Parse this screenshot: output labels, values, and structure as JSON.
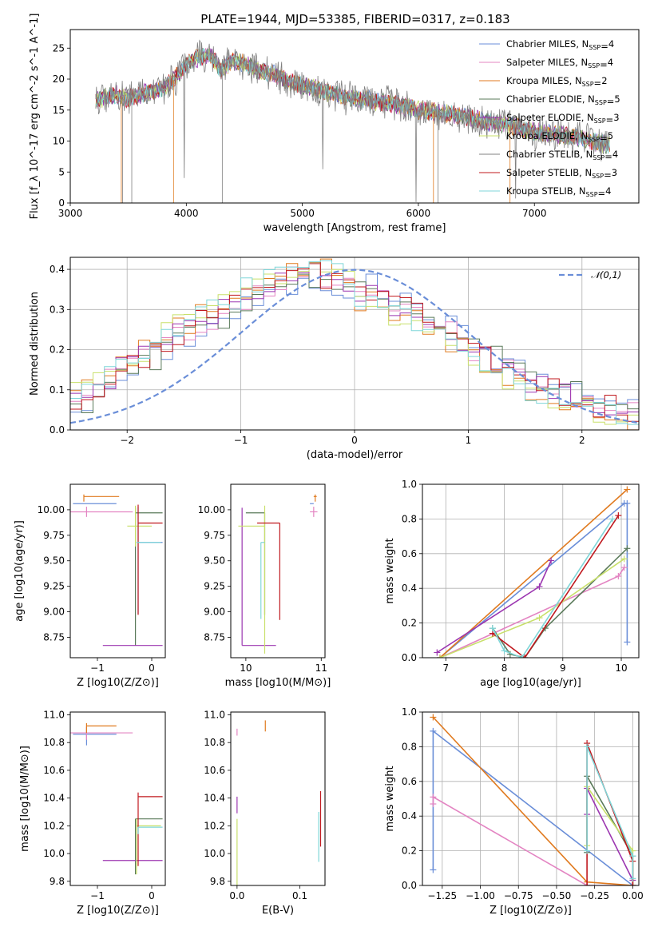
{
  "figure": {
    "title": "PLATE=1944, MJD=53385, FIBERID=0317, z=0.183"
  },
  "models": [
    {
      "name": "Chabrier MILES",
      "nssp": "4",
      "color": "#6a8ed8"
    },
    {
      "name": "Salpeter MILES",
      "nssp": "4",
      "color": "#e384c2"
    },
    {
      "name": "Kroupa MILES",
      "nssp": "2",
      "color": "#e07a1f"
    },
    {
      "name": "Chabrier ELODIE",
      "nssp": "5",
      "color": "#5a7a5a"
    },
    {
      "name": "Salpeter ELODIE",
      "nssp": "3",
      "color": "#9b35b0"
    },
    {
      "name": "Kroupa ELODIE",
      "nssp": "5",
      "color": "#c8e06a"
    },
    {
      "name": "Chabrier STELIB",
      "nssp": "4",
      "color": "#808080"
    },
    {
      "name": "Salpeter STELIB",
      "nssp": "3",
      "color": "#c0181e"
    },
    {
      "name": "Kroupa STELIB",
      "nssp": "4",
      "color": "#7fd6d8"
    }
  ],
  "chart_data": [
    {
      "id": "spectrum",
      "type": "line",
      "xlabel": "wavelength [Angstrom, rest frame]",
      "ylabel": "Flux [f_λ 10^-17 erg cm^-2 s^-1 A^-1]",
      "xlim": [
        3000,
        7900
      ],
      "ylim": [
        0,
        28
      ],
      "xticks": [
        3000,
        4000,
        5000,
        6000,
        7000
      ],
      "yticks": [
        0,
        5,
        10,
        15,
        20,
        25
      ],
      "grid": false,
      "legend": "top-right",
      "continuum": {
        "x": [
          3220,
          3300,
          3400,
          3500,
          3600,
          3700,
          3800,
          3900,
          4000,
          4100,
          4200,
          4300,
          4400,
          4500,
          4600,
          4700,
          4800,
          4900,
          5000,
          5200,
          5400,
          5600,
          5800,
          6000,
          6200,
          6400,
          6600,
          6800,
          7000,
          7200,
          7400,
          7600
        ],
        "y": [
          16.5,
          17.0,
          17.5,
          16.8,
          17.5,
          18.0,
          18.5,
          20.0,
          22.5,
          23.5,
          24.0,
          21.5,
          23.0,
          22.5,
          21.5,
          21.0,
          20.5,
          19.5,
          19.0,
          18.0,
          17.0,
          16.5,
          16.0,
          15.0,
          14.5,
          14.0,
          13.0,
          12.5,
          11.5,
          11.0,
          10.5,
          9.5
        ]
      }
    },
    {
      "id": "residuals",
      "type": "line",
      "xlabel": "(data-model)/error",
      "ylabel": "Normed distribution",
      "xlim": [
        -2.5,
        2.5
      ],
      "ylim": [
        0,
        0.43
      ],
      "xticks": [
        -2,
        -1,
        0,
        1,
        2
      ],
      "yticks": [
        0.0,
        0.1,
        0.2,
        0.3,
        0.4
      ],
      "grid": true,
      "legend": "top-right",
      "reference": {
        "name": "𝒩(0,1)",
        "mean": 0,
        "sigma": 1
      },
      "histogram": {
        "bin_start": -2.5,
        "bin_width": 0.1,
        "values": [
          0.08,
          0.09,
          0.11,
          0.13,
          0.15,
          0.16,
          0.18,
          0.2,
          0.22,
          0.24,
          0.25,
          0.27,
          0.28,
          0.3,
          0.31,
          0.33,
          0.34,
          0.36,
          0.37,
          0.38,
          0.38,
          0.39,
          0.38,
          0.38,
          0.37,
          0.33,
          0.34,
          0.33,
          0.31,
          0.3,
          0.29,
          0.28,
          0.26,
          0.24,
          0.22,
          0.2,
          0.18,
          0.16,
          0.15,
          0.13,
          0.12,
          0.11,
          0.1,
          0.09,
          0.08,
          0.07,
          0.06,
          0.06,
          0.05,
          0.05
        ]
      }
    },
    {
      "id": "age-vs-Z",
      "type": "scatter",
      "xlabel": "Z [log10(Z/Z⊙)]",
      "ylabel": "age [log10(age/yr)]",
      "xlim": [
        -1.5,
        0.25
      ],
      "ylim": [
        8.55,
        10.25
      ],
      "xticks": [
        -1,
        0
      ],
      "yticks": [
        8.75,
        9.0,
        9.25,
        9.5,
        9.75,
        10.0
      ],
      "grid": false,
      "points": [
        {
          "model": 0,
          "x": -0.25,
          "y": 9.68,
          "xerr": [
            0.0,
            0.45
          ],
          "yerr": [
            0.7,
            0.35
          ]
        },
        {
          "model": 0,
          "x": -1.2,
          "y": 10.06,
          "xerr": [
            0.25,
            0.55
          ],
          "yerr": [
            0.0,
            0.0
          ]
        },
        {
          "model": 1,
          "x": -1.2,
          "y": 9.98,
          "xerr": [
            0.3,
            0.85
          ],
          "yerr": [
            0.05,
            0.05
          ]
        },
        {
          "model": 2,
          "x": -1.25,
          "y": 10.13,
          "xerr": [
            0.0,
            0.65
          ],
          "yerr": [
            0.05,
            0.02
          ]
        },
        {
          "model": 3,
          "x": -0.3,
          "y": 9.97,
          "xerr": [
            0.0,
            0.5
          ],
          "yerr": [
            1.3,
            0.05
          ]
        },
        {
          "model": 4,
          "x": -0.35,
          "y": 8.67,
          "xerr": [
            0.55,
            0.55
          ],
          "yerr": [
            0.0,
            0.0
          ]
        },
        {
          "model": 5,
          "x": -0.3,
          "y": 9.84,
          "xerr": [
            0.15,
            0.3
          ],
          "yerr": [
            0.2,
            0.2
          ]
        },
        {
          "model": 7,
          "x": -0.25,
          "y": 9.87,
          "xerr": [
            0.0,
            0.45
          ],
          "yerr": [
            0.9,
            0.18
          ]
        },
        {
          "model": 8,
          "x": -0.28,
          "y": 9.68,
          "xerr": [
            0.0,
            0.45
          ],
          "yerr": [
            0.0,
            0.0
          ]
        }
      ]
    },
    {
      "id": "age-vs-mass",
      "type": "scatter",
      "xlabel": "mass [log10(M/M⊙)]",
      "ylabel": "",
      "xlim": [
        9.8,
        11.05
      ],
      "ylim": [
        8.55,
        10.25
      ],
      "xticks": [
        10,
        11
      ],
      "yticks": [
        8.75,
        9.0,
        9.25,
        9.5,
        9.75,
        10.0
      ],
      "grid": false,
      "points": [
        {
          "model": 0,
          "x": 10.85,
          "y": 10.06,
          "xerr": [
            0.0,
            0.05
          ],
          "yerr": [
            0.0,
            0.0
          ]
        },
        {
          "model": 1,
          "x": 10.9,
          "y": 9.98,
          "xerr": [
            0.05,
            0.05
          ],
          "yerr": [
            0.05,
            0.05
          ]
        },
        {
          "model": 2,
          "x": 10.92,
          "y": 10.13,
          "xerr": [
            0.02,
            0.02
          ],
          "yerr": [
            0.05,
            0.02
          ]
        },
        {
          "model": 3,
          "x": 10.25,
          "y": 9.97,
          "xerr": [
            0.25,
            0.0
          ],
          "yerr": [
            1.0,
            0.0
          ]
        },
        {
          "model": 4,
          "x": 9.95,
          "y": 8.67,
          "xerr": [
            0.0,
            0.45
          ],
          "yerr": [
            0.0,
            1.35
          ]
        },
        {
          "model": 5,
          "x": 10.25,
          "y": 9.84,
          "xerr": [
            0.35,
            0.0
          ],
          "yerr": [
            1.25,
            0.2
          ]
        },
        {
          "model": 7,
          "x": 10.45,
          "y": 9.87,
          "xerr": [
            0.3,
            0.0
          ],
          "yerr": [
            0.95,
            0.0
          ]
        },
        {
          "model": 8,
          "x": 10.2,
          "y": 9.68,
          "xerr": [
            0.0,
            0.05
          ],
          "yerr": [
            0.75,
            0.0
          ]
        }
      ]
    },
    {
      "id": "mass-weight-vs-age",
      "type": "line",
      "xlabel": "age [log10(age/yr)]",
      "ylabel": "mass weight",
      "xlim": [
        6.6,
        10.3
      ],
      "ylim": [
        0,
        1.0
      ],
      "xticks": [
        7,
        8,
        9,
        10
      ],
      "yticks": [
        0.0,
        0.2,
        0.4,
        0.6,
        0.8,
        1.0
      ],
      "grid": true,
      "series": [
        {
          "model": 0,
          "x": [
            6.9,
            10.05,
            10.1,
            10.1
          ],
          "y": [
            0.0,
            0.89,
            0.89,
            0.09
          ]
        },
        {
          "model": 1,
          "x": [
            6.9,
            9.95,
            10.05
          ],
          "y": [
            0.0,
            0.47,
            0.52
          ]
        },
        {
          "model": 2,
          "x": [
            6.9,
            10.1
          ],
          "y": [
            0.0,
            0.97
          ]
        },
        {
          "model": 3,
          "x": [
            7.8,
            8.1,
            8.35,
            8.7,
            10.1
          ],
          "y": [
            0.17,
            0.02,
            0.0,
            0.17,
            0.63
          ]
        },
        {
          "model": 4,
          "x": [
            6.85,
            8.6,
            8.8
          ],
          "y": [
            0.03,
            0.41,
            0.56
          ]
        },
        {
          "model": 5,
          "x": [
            6.9,
            8.6,
            10.05
          ],
          "y": [
            0.0,
            0.23,
            0.57
          ]
        },
        {
          "model": 7,
          "x": [
            7.8,
            8.35,
            9.95
          ],
          "y": [
            0.14,
            0.0,
            0.82
          ]
        },
        {
          "model": 8,
          "x": [
            7.8,
            8.0,
            8.3,
            9.85
          ],
          "y": [
            0.17,
            0.04,
            0.0,
            0.8
          ]
        }
      ]
    },
    {
      "id": "mass-vs-Z",
      "type": "scatter",
      "xlabel": "Z [log10(Z/Z⊙)]",
      "ylabel": "mass [log10(M/M⊙)]",
      "xlim": [
        -1.5,
        0.25
      ],
      "ylim": [
        9.77,
        11.02
      ],
      "xticks": [
        -1,
        0
      ],
      "yticks": [
        9.8,
        10.0,
        10.2,
        10.4,
        10.6,
        10.8,
        11.0
      ],
      "grid": false,
      "points": [
        {
          "model": 0,
          "x": -1.2,
          "y": 10.86,
          "xerr": [
            0.25,
            0.55
          ],
          "yerr": [
            0.08,
            0.05
          ]
        },
        {
          "model": 1,
          "x": -1.2,
          "y": 10.87,
          "xerr": [
            0.35,
            0.85
          ],
          "yerr": [
            0.05,
            0.05
          ]
        },
        {
          "model": 2,
          "x": -1.2,
          "y": 10.92,
          "xerr": [
            0.0,
            0.55
          ],
          "yerr": [
            0.05,
            0.02
          ]
        },
        {
          "model": 3,
          "x": -0.3,
          "y": 10.25,
          "xerr": [
            0.0,
            0.5
          ],
          "yerr": [
            0.4,
            0.0
          ]
        },
        {
          "model": 4,
          "x": -0.35,
          "y": 9.95,
          "xerr": [
            0.55,
            0.55
          ],
          "yerr": [
            0.0,
            0.0
          ]
        },
        {
          "model": 5,
          "x": -0.28,
          "y": 10.2,
          "xerr": [
            0.0,
            0.45
          ],
          "yerr": [
            0.35,
            0.05
          ]
        },
        {
          "model": 7,
          "x": -0.25,
          "y": 10.41,
          "xerr": [
            0.0,
            0.45
          ],
          "yerr": [
            0.5,
            0.03
          ]
        },
        {
          "model": 8,
          "x": -0.25,
          "y": 10.19,
          "xerr": [
            0.0,
            0.45
          ],
          "yerr": [
            0.05,
            0.0
          ]
        }
      ]
    },
    {
      "id": "mass-vs-EBV",
      "type": "scatter",
      "xlabel": "E(B-V)",
      "ylabel": "",
      "xlim": [
        -0.01,
        0.14
      ],
      "ylim": [
        9.77,
        11.02
      ],
      "xticks": [
        0.0,
        0.1
      ],
      "yticks": [
        9.8,
        10.0,
        10.2,
        10.4,
        10.6,
        10.8,
        11.0
      ],
      "grid": false,
      "points": [
        {
          "model": 2,
          "x": 0.045,
          "y": 10.92,
          "xerr": [
            0,
            0
          ],
          "yerr": [
            0.04,
            0.04
          ]
        },
        {
          "model": 4,
          "x": 0.0,
          "y": 10.35,
          "xerr": [
            0,
            0
          ],
          "yerr": [
            0.06,
            0.06
          ]
        },
        {
          "model": 1,
          "x": 0.0,
          "y": 10.9,
          "xerr": [
            0,
            0
          ],
          "yerr": [
            0.05,
            0.0
          ]
        },
        {
          "model": 5,
          "x": 0.0,
          "y": 10.0,
          "xerr": [
            0,
            0
          ],
          "yerr": [
            0.25,
            0.25
          ]
        },
        {
          "model": 7,
          "x": 0.133,
          "y": 10.25,
          "xerr": [
            0,
            0
          ],
          "yerr": [
            0.2,
            0.2
          ]
        },
        {
          "model": 8,
          "x": 0.13,
          "y": 10.12,
          "xerr": [
            0,
            0
          ],
          "yerr": [
            0.18,
            0.18
          ]
        }
      ]
    },
    {
      "id": "mass-weight-vs-Z",
      "type": "line",
      "xlabel": "Z [log10(Z/Z⊙)]",
      "ylabel": "mass weight",
      "xlim": [
        -1.38,
        0.04
      ],
      "ylim": [
        0,
        1.0
      ],
      "xticks": [
        -1.25,
        -1.0,
        -0.75,
        -0.5,
        -0.25,
        0.0
      ],
      "yticks": [
        0.0,
        0.2,
        0.4,
        0.6,
        0.8,
        1.0
      ],
      "grid": true,
      "series": [
        {
          "model": 0,
          "x": [
            -1.31,
            -1.31,
            0.0
          ],
          "y": [
            0.09,
            0.89,
            0.0
          ]
        },
        {
          "model": 1,
          "x": [
            -1.31,
            -1.31,
            -0.3,
            0.0
          ],
          "y": [
            0.47,
            0.51,
            0.0,
            0.0
          ]
        },
        {
          "model": 2,
          "x": [
            -1.31,
            -0.3,
            0.0
          ],
          "y": [
            0.97,
            0.02,
            0.0
          ]
        },
        {
          "model": 3,
          "x": [
            -0.3,
            -0.3,
            0.0,
            0.0
          ],
          "y": [
            0.19,
            0.63,
            0.17,
            0.0
          ]
        },
        {
          "model": 4,
          "x": [
            -0.3,
            -0.3,
            0.0
          ],
          "y": [
            0.41,
            0.56,
            0.03
          ]
        },
        {
          "model": 5,
          "x": [
            -0.3,
            -0.3,
            0.0,
            0.0
          ],
          "y": [
            0.23,
            0.57,
            0.2,
            0.0
          ]
        },
        {
          "model": 7,
          "x": [
            -0.3,
            -0.3,
            0.0,
            0.0
          ],
          "y": [
            0.0,
            0.82,
            0.14,
            0.0
          ]
        },
        {
          "model": 8,
          "x": [
            -0.3,
            -0.3,
            0.0,
            0.0
          ],
          "y": [
            0.2,
            0.8,
            0.17,
            0.04
          ]
        }
      ]
    }
  ]
}
